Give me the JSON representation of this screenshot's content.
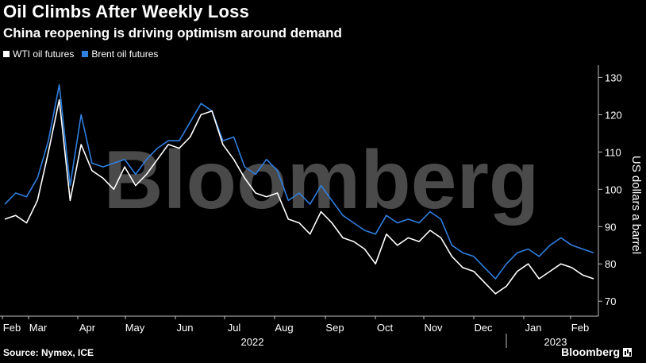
{
  "title": "Oil Climbs After Weekly Loss",
  "subtitle": "China reopening is driving optimism around demand",
  "source": "Source: Nymex, ICE",
  "brand": "Bloomberg",
  "watermark": "Bloomberg",
  "colors": {
    "wti": "#ffffff",
    "brent": "#2f7fe0",
    "background": "#000000",
    "axis": "#bfbfbf"
  },
  "chart_data": {
    "type": "line",
    "title": "Oil Climbs After Weekly Loss",
    "subtitle": "China reopening is driving optimism around demand",
    "ylabel": "US dollars a barrel",
    "xlabel": "",
    "ylim": [
      66,
      132
    ],
    "yticks": [
      70,
      80,
      90,
      100,
      110,
      120,
      130
    ],
    "y_axis_side": "right",
    "grid": false,
    "legend": "top-left",
    "xtick_labels": [
      "Feb",
      "Mar",
      "Apr",
      "May",
      "Jun",
      "Jul",
      "Aug",
      "Sep",
      "Oct",
      "Nov",
      "Dec",
      "Jan",
      "Feb"
    ],
    "year_labels": [
      "2022",
      "2023"
    ],
    "x": [
      "2022-02-01",
      "2022-02-08",
      "2022-02-15",
      "2022-02-22",
      "2022-03-01",
      "2022-03-08",
      "2022-03-15",
      "2022-03-22",
      "2022-03-29",
      "2022-04-05",
      "2022-04-12",
      "2022-04-19",
      "2022-04-26",
      "2022-05-03",
      "2022-05-10",
      "2022-05-17",
      "2022-05-24",
      "2022-05-31",
      "2022-06-07",
      "2022-06-14",
      "2022-06-21",
      "2022-06-28",
      "2022-07-05",
      "2022-07-12",
      "2022-07-19",
      "2022-07-26",
      "2022-08-02",
      "2022-08-09",
      "2022-08-16",
      "2022-08-23",
      "2022-08-30",
      "2022-09-06",
      "2022-09-13",
      "2022-09-20",
      "2022-09-27",
      "2022-10-04",
      "2022-10-11",
      "2022-10-18",
      "2022-10-25",
      "2022-11-01",
      "2022-11-08",
      "2022-11-15",
      "2022-11-22",
      "2022-11-29",
      "2022-12-06",
      "2022-12-13",
      "2022-12-20",
      "2022-12-27",
      "2023-01-03",
      "2023-01-10",
      "2023-01-17",
      "2023-01-24",
      "2023-01-31",
      "2023-02-07",
      "2023-02-14"
    ],
    "series": [
      {
        "name": "WTI oil futures",
        "values": [
          92,
          93,
          91,
          97,
          110,
          124,
          97,
          112,
          105,
          103,
          100,
          106,
          101,
          104,
          108,
          112,
          111,
          114,
          120,
          121,
          112,
          108,
          103,
          99,
          98,
          99,
          92,
          91,
          88,
          94,
          91,
          87,
          86,
          84,
          80,
          88,
          85,
          87,
          86,
          89,
          87,
          82,
          79,
          78,
          75,
          72,
          74,
          78,
          80,
          76,
          78,
          80,
          79,
          77,
          76
        ]
      },
      {
        "name": "Brent oil futures",
        "values": [
          96,
          99,
          98,
          103,
          113,
          128,
          101,
          120,
          107,
          106,
          107,
          108,
          104,
          108,
          111,
          113,
          113,
          118,
          123,
          121,
          113,
          114,
          106,
          104,
          108,
          105,
          97,
          99,
          96,
          101,
          97,
          93,
          91,
          89,
          88,
          93,
          91,
          92,
          91,
          94,
          92,
          85,
          83,
          82,
          79,
          76,
          80,
          83,
          84,
          82,
          85,
          87,
          85,
          84,
          83
        ]
      }
    ]
  }
}
